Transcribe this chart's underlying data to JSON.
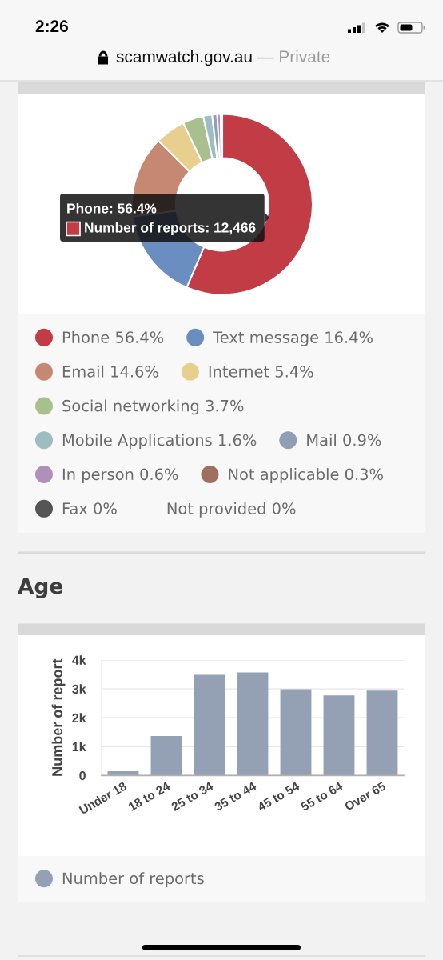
{
  "chart_data": [
    {
      "type": "donut",
      "categories": [
        "Phone 56.4%",
        "Text message 16.4%",
        "Email 14.6%",
        "Internet 5.4%",
        "Social networking 3.7%",
        "Mobile Applications 1.6%",
        "Mail 0.9%",
        "In person 0.6%",
        "Not applicable 0.3%",
        "Fax 0%",
        "Not provided 0%"
      ],
      "values": [
        56.4,
        16.4,
        14.6,
        5.4,
        3.7,
        1.6,
        0.9,
        0.6,
        0.3,
        0,
        0
      ],
      "colors": [
        "#c23c45",
        "#6a8ebf",
        "#c68873",
        "#e8cf8e",
        "#a7c08e",
        "#9ebdc0",
        "#929eb5",
        "#b08fbb",
        "#a0705e",
        "#555555",
        null
      ],
      "legend": "bottom",
      "annotations": [
        "2:26",
        "scamwatch.gov.au",
        "— Private",
        "Phone: 56.4%",
        "Number of reports: 12,466"
      ]
    },
    {
      "type": "bar",
      "title": "Age",
      "categories": [
        "Under 18",
        "18 to 24",
        "25 to 34",
        "35 to 44",
        "45 to 54",
        "55 to 64",
        "Over 65"
      ],
      "series": [
        {
          "name": "Number of reports",
          "color": "#94a1b4",
          "values": [
            150,
            1370,
            3490,
            3570,
            2990,
            2770,
            2940
          ]
        }
      ],
      "ylabel": "Number of report",
      "ylim": [
        0,
        4000
      ],
      "yticks": [
        0,
        {
          "value": 1000,
          "label": "1k"
        },
        {
          "value": 2000,
          "label": "2k"
        },
        {
          "value": 3000,
          "label": "3k"
        },
        {
          "value": 4000,
          "label": "4k"
        }
      ],
      "grid": "y",
      "legend": "bottom"
    }
  ]
}
